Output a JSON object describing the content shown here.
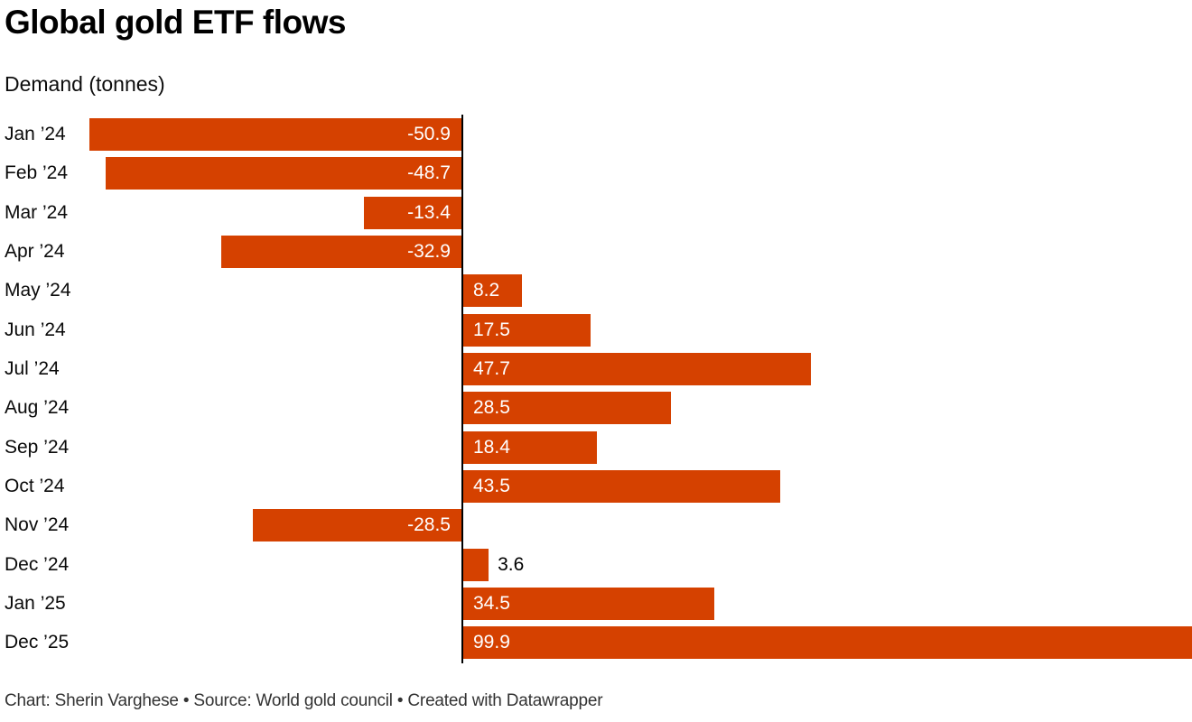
{
  "header": {
    "title": "Global gold ETF flows",
    "subtitle": "Demand (tonnes)"
  },
  "footer": {
    "text": "Chart: Sherin Varghese • Source: World gold council • Created with Datawrapper"
  },
  "colors": {
    "bar": "#d54100",
    "axis": "#000000",
    "label_inside": "#ffffff",
    "label_outside": "#000000",
    "background": "#ffffff"
  },
  "chart_data": {
    "type": "bar",
    "orientation": "horizontal",
    "title": "Global gold ETF flows",
    "subtitle": "Demand (tonnes)",
    "xlabel": "Demand (tonnes)",
    "ylabel": "",
    "categories": [
      "Jan ’24",
      "Feb ’24",
      "Mar ’24",
      "Apr ’24",
      "May ’24",
      "Jun ’24",
      "Jul ’24",
      "Aug ’24",
      "Sep ’24",
      "Oct ’24",
      "Nov ’24",
      "Dec ’24",
      "Jan ’25",
      "Dec ’25"
    ],
    "values": [
      -50.9,
      -48.7,
      -13.4,
      -32.9,
      8.2,
      17.5,
      47.7,
      28.5,
      18.4,
      43.5,
      -28.5,
      3.6,
      34.5,
      99.9
    ],
    "value_labels": [
      "-50.9",
      "-48.7",
      "-13.4",
      "-32.9",
      "8.2",
      "17.5",
      "47.7",
      "28.5",
      "18.4",
      "43.5",
      "-28.5",
      "3.6",
      "34.5",
      "99.9"
    ],
    "xlim": [
      -50.9,
      99.9
    ],
    "grid": false,
    "legend": false,
    "value_label_position": "inside bar (white), outside (black) when bar too narrow"
  }
}
